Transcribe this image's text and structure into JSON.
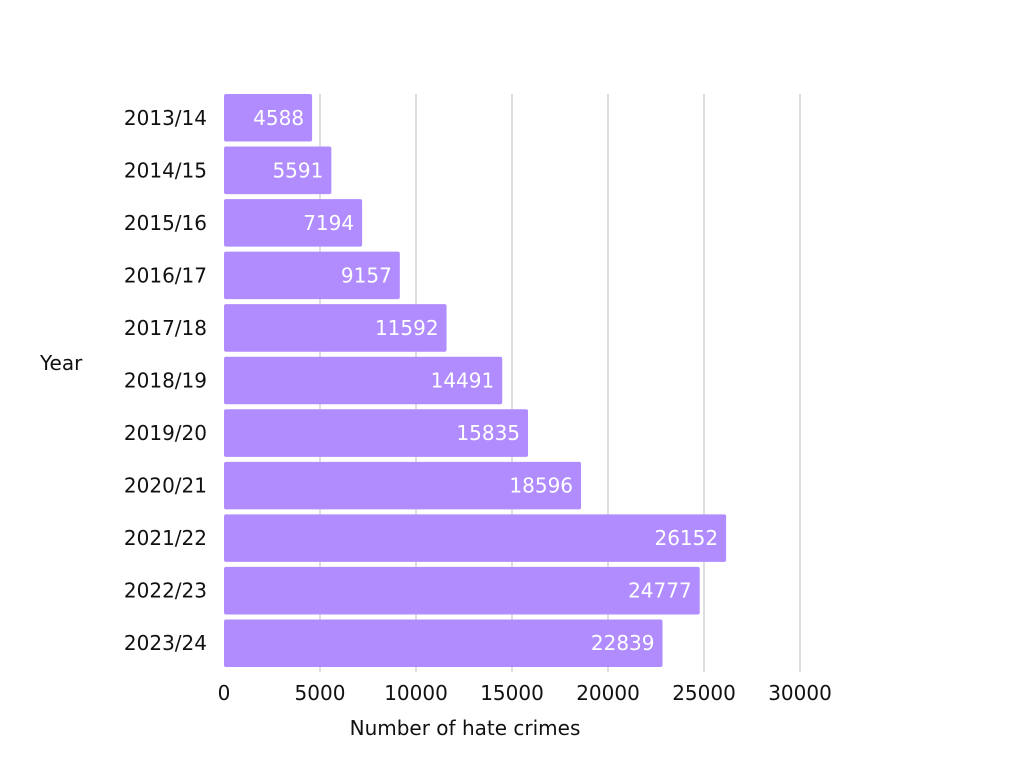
{
  "chart_data": {
    "type": "bar",
    "orientation": "horizontal",
    "categories": [
      "2013/14",
      "2014/15",
      "2015/16",
      "2016/17",
      "2017/18",
      "2018/19",
      "2019/20",
      "2020/21",
      "2021/22",
      "2022/23",
      "2023/24"
    ],
    "values": [
      4588,
      5591,
      7194,
      9157,
      11592,
      14491,
      15835,
      18596,
      26152,
      24777,
      22839
    ],
    "value_labels": [
      "4588",
      "5591",
      "7194",
      "9157",
      "11592",
      "14491",
      "15835",
      "18596",
      "26152",
      "24777",
      "22839"
    ],
    "xlabel": "Number of hate crimes",
    "ylabel": "Year",
    "xlim": [
      0,
      30000
    ],
    "xticks": [
      0,
      5000,
      10000,
      15000,
      20000,
      25000,
      30000
    ],
    "xtick_labels": [
      "0",
      "5000",
      "10000",
      "15000",
      "20000",
      "25000",
      "30000"
    ],
    "grid": "vertical",
    "bar_color": "#b18cfe",
    "label_color": "#ffffff"
  }
}
